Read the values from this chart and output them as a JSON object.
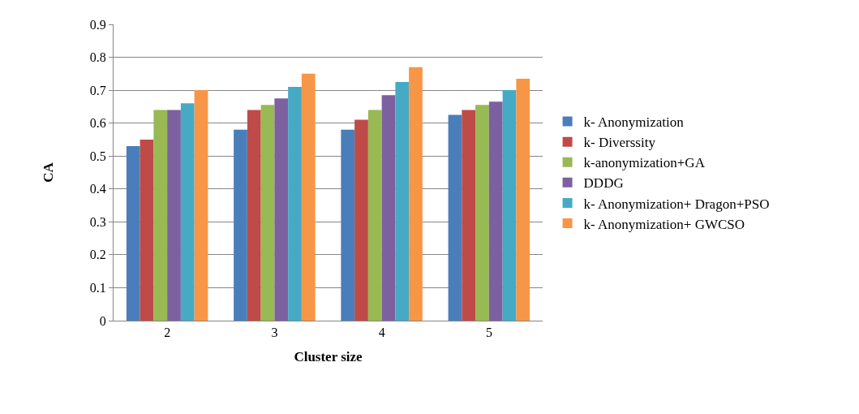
{
  "chart_data": {
    "type": "bar",
    "xlabel": "Cluster size",
    "ylabel": "CA",
    "categories": [
      "2",
      "3",
      "4",
      "5"
    ],
    "series": [
      {
        "name": "k- Anonymization",
        "color": "#4a7ebb",
        "values": [
          0.53,
          0.58,
          0.58,
          0.625
        ]
      },
      {
        "name": "k- Diverssity",
        "color": "#be4b48",
        "values": [
          0.55,
          0.64,
          0.61,
          0.64
        ]
      },
      {
        "name": "k-anonymization+GA",
        "color": "#98b954",
        "values": [
          0.64,
          0.655,
          0.64,
          0.655
        ]
      },
      {
        "name": "DDDG",
        "color": "#7d60a0",
        "values": [
          0.64,
          0.675,
          0.685,
          0.665
        ]
      },
      {
        "name": "k- Anonymization+ Dragon+PSO",
        "color": "#46aac5",
        "values": [
          0.66,
          0.71,
          0.725,
          0.7
        ]
      },
      {
        "name": "k- Anonymization+ GWCSO",
        "color": "#f79646",
        "values": [
          0.7,
          0.75,
          0.77,
          0.735
        ]
      }
    ],
    "ylim": [
      0,
      0.9
    ],
    "yticks": [
      0,
      0.1,
      0.2,
      0.3,
      0.4,
      0.5,
      0.6,
      0.7,
      0.8,
      0.9
    ],
    "grid": "y",
    "legend": "right"
  }
}
